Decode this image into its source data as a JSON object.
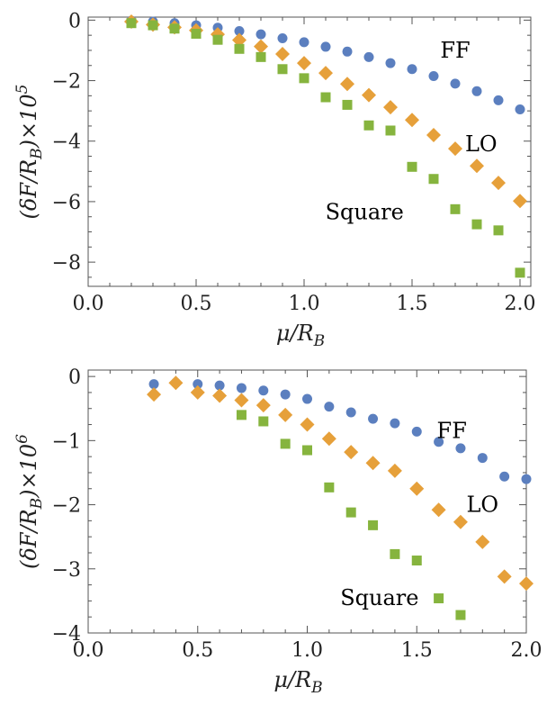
{
  "colors": {
    "FF": "#5b7fbf",
    "LO": "#e6a03a",
    "Square": "#86b43e"
  },
  "chart_data": [
    {
      "type": "scatter",
      "xlabel": "μ/R_B",
      "ylabel": "(δF/R_B)×10^5",
      "xlim": [
        0.0,
        2.05
      ],
      "ylim": [
        -8.8,
        0.1
      ],
      "xticks": [
        0.0,
        0.5,
        1.0,
        1.5,
        2.0
      ],
      "xtick_labels": [
        "0.0",
        "0.5",
        "1.0",
        "1.5",
        "2.0"
      ],
      "yticks": [
        0,
        -2,
        -4,
        -6,
        -8
      ],
      "ytick_labels": [
        "0",
        "−2",
        "−4",
        "−6",
        "−8"
      ],
      "series": [
        {
          "name": "FF",
          "marker": "circle",
          "x": [
            0.2,
            0.3,
            0.4,
            0.5,
            0.6,
            0.7,
            0.8,
            0.9,
            1.0,
            1.1,
            1.2,
            1.3,
            1.4,
            1.5,
            1.6,
            1.7,
            1.8,
            1.9,
            2.0
          ],
          "y": [
            -0.02,
            -0.05,
            -0.1,
            -0.17,
            -0.25,
            -0.36,
            -0.47,
            -0.6,
            -0.73,
            -0.88,
            -1.04,
            -1.22,
            -1.42,
            -1.62,
            -1.85,
            -2.1,
            -2.35,
            -2.65,
            -2.95
          ]
        },
        {
          "name": "LO",
          "marker": "diamond",
          "x": [
            0.2,
            0.3,
            0.4,
            0.5,
            0.6,
            0.7,
            0.8,
            0.9,
            1.0,
            1.1,
            1.2,
            1.3,
            1.4,
            1.5,
            1.6,
            1.7,
            1.8,
            1.9,
            2.0
          ],
          "y": [
            -0.05,
            -0.15,
            -0.24,
            -0.34,
            -0.47,
            -0.66,
            -0.87,
            -1.12,
            -1.42,
            -1.75,
            -2.11,
            -2.48,
            -2.88,
            -3.3,
            -3.8,
            -4.25,
            -4.82,
            -5.38,
            -5.98
          ]
        },
        {
          "name": "Square",
          "marker": "square",
          "x": [
            0.2,
            0.3,
            0.4,
            0.5,
            0.6,
            0.7,
            0.8,
            0.9,
            1.0,
            1.1,
            1.2,
            1.3,
            1.4,
            1.5,
            1.6,
            1.7,
            1.8,
            1.9,
            2.0
          ],
          "y": [
            -0.1,
            -0.17,
            -0.28,
            -0.45,
            -0.65,
            -0.95,
            -1.22,
            -1.62,
            -1.92,
            -2.55,
            -2.8,
            -3.48,
            -3.65,
            -4.85,
            -5.25,
            -6.25,
            -6.75,
            -6.95,
            -8.35
          ]
        }
      ],
      "labels": [
        {
          "text": "FF",
          "x": 1.7,
          "y": -1.0
        },
        {
          "text": "LO",
          "x": 1.82,
          "y": -4.1
        },
        {
          "text": "Square",
          "x": 1.28,
          "y": -6.35
        }
      ]
    },
    {
      "type": "scatter",
      "xlabel": "μ/R_B",
      "ylabel": "(δF/R_B)×10^6",
      "xlim": [
        0.0,
        2.0
      ],
      "ylim": [
        -4.0,
        0.1
      ],
      "xticks": [
        0.0,
        0.5,
        1.0,
        1.5,
        2.0
      ],
      "xtick_labels": [
        "0.0",
        "0.5",
        "1.0",
        "1.5",
        "2.0"
      ],
      "yticks": [
        0,
        -1,
        -2,
        -3,
        -4
      ],
      "ytick_labels": [
        "0",
        "−1",
        "−2",
        "−3",
        "−4"
      ],
      "series": [
        {
          "name": "FF",
          "marker": "circle",
          "x": [
            0.3,
            0.4,
            0.5,
            0.6,
            0.7,
            0.8,
            0.9,
            1.0,
            1.1,
            1.2,
            1.3,
            1.4,
            1.5,
            1.6,
            1.7,
            1.8,
            1.9,
            2.0
          ],
          "y": [
            -0.12,
            -0.1,
            -0.12,
            -0.14,
            -0.18,
            -0.22,
            -0.28,
            -0.35,
            -0.47,
            -0.56,
            -0.66,
            -0.73,
            -0.86,
            -1.02,
            -1.12,
            -1.27,
            -1.56,
            -1.6
          ]
        },
        {
          "name": "LO",
          "marker": "diamond",
          "x": [
            0.3,
            0.4,
            0.5,
            0.6,
            0.7,
            0.8,
            0.9,
            1.0,
            1.1,
            1.2,
            1.3,
            1.4,
            1.5,
            1.6,
            1.7,
            1.8,
            1.9,
            2.0
          ],
          "y": [
            -0.28,
            -0.1,
            -0.25,
            -0.3,
            -0.37,
            -0.45,
            -0.6,
            -0.75,
            -0.97,
            -1.18,
            -1.35,
            -1.47,
            -1.75,
            -2.08,
            -2.27,
            -2.58,
            -3.12,
            -3.23
          ]
        },
        {
          "name": "Square",
          "marker": "square",
          "x": [
            0.7,
            0.8,
            0.9,
            1.0,
            1.1,
            1.2,
            1.3,
            1.4,
            1.5,
            1.6,
            1.7
          ],
          "y": [
            -0.6,
            -0.7,
            -1.05,
            -1.15,
            -1.73,
            -2.12,
            -2.32,
            -2.77,
            -2.87,
            -3.46,
            -3.72
          ]
        }
      ],
      "labels": [
        {
          "text": "FF",
          "x": 1.66,
          "y": -0.85
        },
        {
          "text": "LO",
          "x": 1.8,
          "y": -2.0
        },
        {
          "text": "Square",
          "x": 1.33,
          "y": -3.45
        }
      ]
    }
  ]
}
